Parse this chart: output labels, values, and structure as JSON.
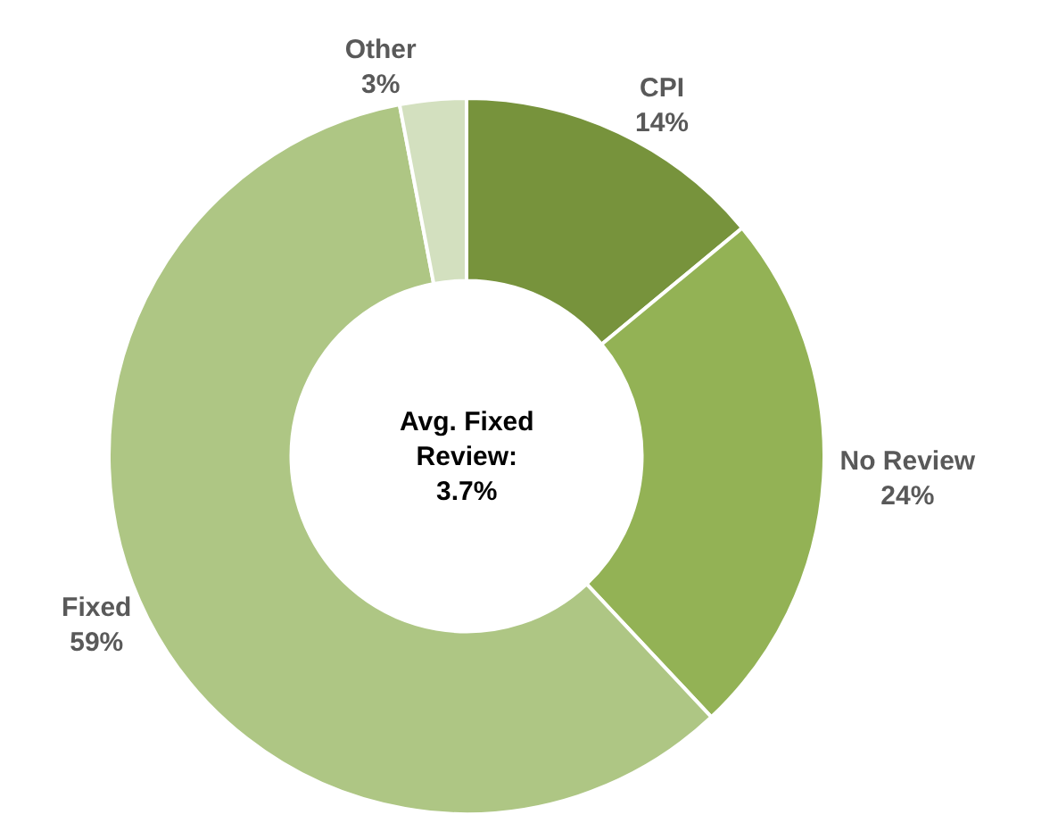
{
  "chart_data": {
    "type": "donut",
    "categories": [
      "CPI",
      "No Review",
      "Fixed",
      "Other"
    ],
    "values": [
      14,
      24,
      59,
      3
    ],
    "value_labels": [
      "14%",
      "24%",
      "59%",
      "3%"
    ],
    "colors": [
      "#77933c",
      "#93b255",
      "#aec684",
      "#d3e0bf"
    ],
    "annotations": [
      "Avg. Fixed\nReview:\n3.7%"
    ],
    "legend": false
  }
}
